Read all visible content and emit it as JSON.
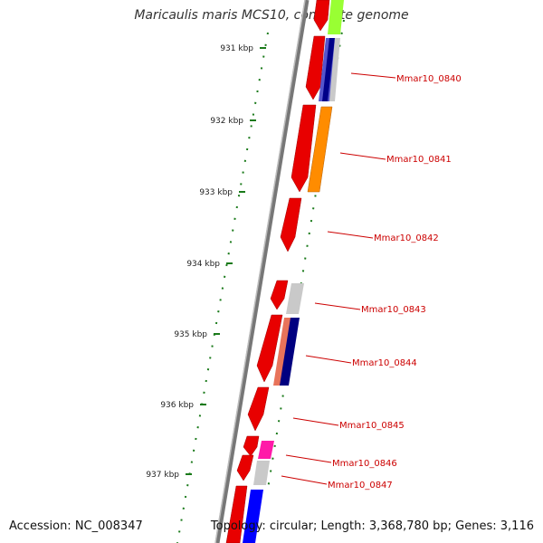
{
  "title": "Maricaulis maris MCS10, complete genome",
  "footer": {
    "accession": "Accession: NC_008347",
    "topology": "Topology: circular; Length: 3,368,780 bp; Genes: 3,116"
  },
  "colors": {
    "backbone": "#8a8a8a",
    "tick": "#1a7a1a",
    "label": "#cc0000",
    "leader": "#cc0000"
  },
  "ticks": [
    {
      "label": "931 kbp"
    },
    {
      "label": "932 kbp"
    },
    {
      "label": "933 kbp"
    },
    {
      "label": "934 kbp"
    },
    {
      "label": "935 kbp"
    },
    {
      "label": "936 kbp"
    },
    {
      "label": "937 kbp"
    }
  ],
  "gene_labels": [
    {
      "label": "Mmar10_0840"
    },
    {
      "label": "Mmar10_0841"
    },
    {
      "label": "Mmar10_0842"
    },
    {
      "label": "Mmar10_0843"
    },
    {
      "label": "Mmar10_0844"
    },
    {
      "label": "Mmar10_0845"
    },
    {
      "label": "Mmar10_0846"
    },
    {
      "label": "Mmar10_0847"
    }
  ]
}
